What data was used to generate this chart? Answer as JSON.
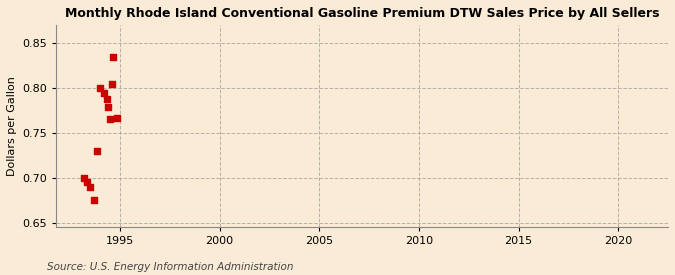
{
  "title": "Monthly Rhode Island Conventional Gasoline Premium DTW Sales Price by All Sellers",
  "ylabel": "Dollars per Gallon",
  "source": "Source: U.S. Energy Information Administration",
  "background_color": "#faebd7",
  "marker_color": "#cc0000",
  "xlim": [
    1991.8,
    2022.5
  ],
  "ylim": [
    0.645,
    0.87
  ],
  "yticks": [
    0.65,
    0.7,
    0.75,
    0.8,
    0.85
  ],
  "xticks": [
    1995,
    2000,
    2005,
    2010,
    2015,
    2020
  ],
  "data_x": [
    1993.17,
    1993.33,
    1993.5,
    1993.67,
    1993.83,
    1994.0,
    1994.17,
    1994.33,
    1994.42,
    1994.5,
    1994.58,
    1994.67,
    1994.83
  ],
  "data_y": [
    0.7,
    0.695,
    0.69,
    0.675,
    0.73,
    0.8,
    0.795,
    0.788,
    0.779,
    0.766,
    0.805,
    0.835,
    0.767
  ]
}
